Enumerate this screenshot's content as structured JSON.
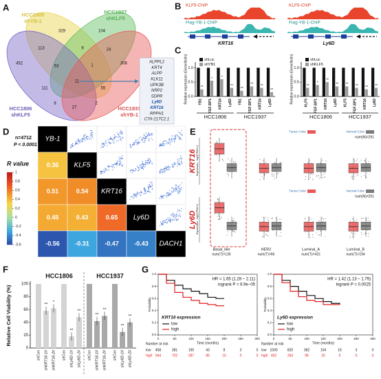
{
  "panel_letters": [
    "A",
    "B",
    "C",
    "D",
    "E",
    "F",
    "G"
  ],
  "venn": {
    "sets": [
      {
        "line1": "HCC1806",
        "line2": "shYB-1",
        "color": "#e8d24a"
      },
      {
        "line1": "HCC1937",
        "line2": "shKLF5",
        "color": "#5fbf5f"
      },
      {
        "line1": "HCC1806",
        "line2": "shKLF5",
        "color": "#7a68c8"
      },
      {
        "line1": "HCC1937",
        "line2": "shYB-1",
        "color": "#e85a5a"
      }
    ],
    "counts": [
      329,
      104,
      113,
      9,
      24,
      452,
      53,
      1,
      306,
      111,
      11,
      55,
      8,
      27,
      2
    ]
  },
  "gene_list": [
    "ALPPL2",
    "KRT4",
    "ALPP",
    "KLK11",
    "UPK3B",
    "NRP2",
    "SDPR",
    "Ly6D",
    "KRT16",
    "RPPH1",
    "CTA-217C2.1"
  ],
  "chip": {
    "tracks": [
      "KLF5-ChIP",
      "Flag-YB-1-ChIP"
    ],
    "genes": [
      "KRT16",
      "Ly6D"
    ]
  },
  "qpcr": [
    {
      "categories": [
        "YB1",
        "FGF-BP1",
        "KRT16",
        "Ly6D",
        "YB1",
        "FGF-BP1",
        "KRT16",
        "Ly6D"
      ],
      "groups": [
        "HCC1806",
        "HCC1937"
      ],
      "series": [
        {
          "name": "shLuc",
          "color": "#111111",
          "values": [
            1,
            1,
            1,
            1,
            1,
            1,
            1,
            1
          ]
        },
        {
          "name": "shYB1",
          "color": "#9a9a9a",
          "values": [
            0.25,
            0.55,
            0.6,
            0.3,
            0.2,
            0.35,
            0.3,
            0.15
          ]
        }
      ],
      "significance": [
        "**",
        "*",
        "*",
        "**",
        "**",
        "**",
        "**",
        "**"
      ],
      "ylabel": "Relative expression (Gene/Actin)",
      "ylim": [
        0,
        1.2
      ],
      "yticks": [
        {
          "value": 0,
          "label": "0.0"
        },
        {
          "value": 0.5,
          "label": "0.5"
        },
        {
          "value": 1,
          "label": "1.0"
        }
      ]
    },
    {
      "categories": [
        "KLF5",
        "FGF-BP1",
        "KRT16",
        "Ly6D",
        "KLF5",
        "FGF-BP1",
        "KRT16",
        "Ly6D"
      ],
      "groups": [
        "HCC1806",
        "HCC1937"
      ],
      "series": [
        {
          "name": "shLuc",
          "color": "#111111",
          "values": [
            1,
            1,
            1,
            1,
            1,
            1,
            1,
            1
          ]
        },
        {
          "name": "shKLF5",
          "color": "#9a9a9a",
          "values": [
            0.3,
            0.4,
            0.5,
            0.35,
            0.35,
            0.3,
            0.25,
            0.3
          ]
        }
      ],
      "significance": [
        "**",
        "*",
        "**",
        "**",
        "**",
        "**",
        "**",
        "**"
      ],
      "ylabel": "Relative expression (Gene/Actin)",
      "ylim": [
        0,
        1.2
      ],
      "yticks": [
        {
          "value": 0,
          "label": "0.0"
        },
        {
          "value": 0.5,
          "label": "0.5"
        },
        {
          "value": 1,
          "label": "1.0"
        }
      ]
    }
  ],
  "correlation": {
    "n": "n=4712",
    "p": "P < 0.0001",
    "legend_title": "R value",
    "legend_ticks": [
      1,
      0.8,
      0.6,
      0.4,
      0.2,
      0,
      -0.2,
      -0.4,
      -0.6
    ],
    "genes": [
      "YB-1",
      "KLF5",
      "KRT16",
      "Ly6D",
      "DACH1"
    ],
    "lower": [
      [
        0.36
      ],
      [
        0.51,
        0.54
      ],
      [
        0.45,
        0.43,
        0.65
      ],
      [
        -0.56,
        -0.31,
        -0.47,
        -0.43
      ]
    ]
  },
  "expression": {
    "genes": [
      "KRT16",
      "Ly6D"
    ],
    "ylabel": "Expression - log2(TPM+1)",
    "tumor_legend": "Tumor Color",
    "normal_legend": "Normal Color",
    "normal_num": "num(N)=291",
    "categories": [
      "Basal_like",
      "HER2",
      "Luminal_A",
      "Luminal_B"
    ],
    "tumor_nums": [
      "num(T)=135",
      "num(T)=66",
      "num(T)=415",
      "num(T)=194"
    ]
  },
  "viability": {
    "groups": [
      "HCC1806",
      "HCC1937"
    ],
    "categories": [
      "shCon",
      "shKRT16-1#",
      "shKRT16-2#",
      "shCon",
      "shLy6D-1#",
      "shLy6D-2#",
      "shCon",
      "shKRT16-1#",
      "shKRT16-2#",
      "shCon",
      "shLy6D-1#",
      "shLy6D-2#"
    ],
    "values": [
      100,
      58,
      62,
      100,
      18,
      48,
      100,
      42,
      50,
      100,
      25,
      40
    ],
    "significance": [
      null,
      "**",
      "*",
      null,
      "**",
      "**",
      null,
      "**",
      "**",
      null,
      "**",
      "**"
    ],
    "colors": [
      "#d4d4d4",
      "#a9a9a9"
    ],
    "ylabel": "Relative Cell Viability (%)",
    "ylim": [
      0,
      100
    ],
    "yticks": [
      0,
      20,
      40,
      60,
      80,
      100
    ]
  },
  "survival": [
    {
      "hr": "HR = 1.65 (1.28 – 2.11)",
      "p": "logrank P = 6.9e−05",
      "legend_title": "KRT16 expression",
      "xlabel": "Time (months)",
      "ylabel": "Probability",
      "risk_title": "Number at risk",
      "x": [
        0,
        25,
        50,
        75,
        100,
        125,
        150,
        175,
        200
      ],
      "series": [
        {
          "name": "low",
          "color": "#111111",
          "values": [
            1,
            0.9,
            0.82,
            0.76,
            0.72,
            0.68,
            0.62,
            0.6,
            0.6
          ],
          "risk": [
            458,
            381,
            190,
            43,
            8,
            3,
            0
          ]
        },
        {
          "name": "high",
          "color": "#e02020",
          "values": [
            1,
            0.85,
            0.7,
            0.62,
            0.57,
            0.52,
            0.5,
            0.48,
            0.48
          ],
          "risk": [
            944,
            702,
            287,
            86,
            15,
            0,
            0
          ]
        }
      ],
      "xlim": [
        0,
        300
      ],
      "xticks": [
        0,
        50,
        100,
        150,
        200,
        250,
        300
      ],
      "ylim": [
        0,
        1
      ],
      "yticks": [
        {
          "value": 0,
          "label": "0.0"
        },
        {
          "value": 0.2,
          "label": "0.2"
        },
        {
          "value": 0.4,
          "label": "0.4"
        },
        {
          "value": 0.6,
          "label": "0.6"
        },
        {
          "value": 0.8,
          "label": "0.8"
        },
        {
          "value": 1,
          "label": "1.0"
        }
      ]
    },
    {
      "hr": "HR = 1.42 (1.13 – 1.79)",
      "p": "logrank P = 0.0025",
      "legend_title": "Ly6D expression",
      "xlabel": "Time (months)",
      "ylabel": "Probability",
      "risk_title": "Number at risk",
      "x": [
        0,
        25,
        50,
        75,
        100,
        125,
        150,
        175,
        200
      ],
      "series": [
        {
          "name": "low",
          "color": "#111111",
          "values": [
            1,
            0.9,
            0.8,
            0.72,
            0.65,
            0.6,
            0.55,
            0.52,
            0.5
          ],
          "risk": [
            1000,
            820,
            382,
            104,
            16,
            3,
            0
          ]
        },
        {
          "name": "high",
          "color": "#e02020",
          "values": [
            1,
            0.86,
            0.72,
            0.63,
            0.57,
            0.55,
            0.5,
            0.5,
            0.5
          ],
          "risk": [
            402,
            263,
            95,
            25,
            5,
            0,
            0
          ]
        }
      ],
      "xlim": [
        0,
        300
      ],
      "xticks": [
        0,
        50,
        100,
        150,
        200,
        250,
        300
      ],
      "ylim": [
        0,
        1
      ],
      "yticks": [
        {
          "value": 0,
          "label": "0.0"
        },
        {
          "value": 0.2,
          "label": "0.2"
        },
        {
          "value": 0.4,
          "label": "0.4"
        },
        {
          "value": 0.6,
          "label": "0.6"
        },
        {
          "value": 0.8,
          "label": "0.8"
        },
        {
          "value": 1,
          "label": "1.0"
        }
      ]
    }
  ]
}
